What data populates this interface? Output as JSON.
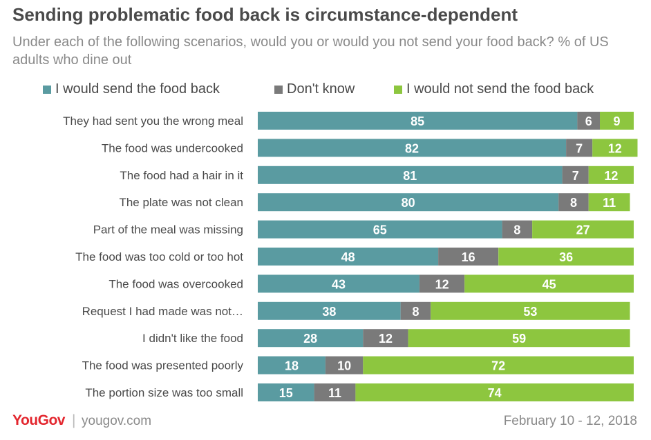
{
  "title": "Sending problematic food back is circumstance-dependent",
  "subtitle": "Under each of the following scenarios, would you or would you not send your food back?  % of US adults who dine out",
  "footer": {
    "logo": "YouGov",
    "separator": "|",
    "url": "yougov.com",
    "date": "February 10 - 12, 2018"
  },
  "colors": {
    "send": "#5a9ba1",
    "dont_know": "#7a7a7a",
    "not_send": "#8dc63f"
  },
  "chart_data": {
    "type": "bar",
    "orientation": "horizontal",
    "stacked": true,
    "categories": [
      "They had sent you the wrong meal",
      "The food was undercooked",
      "The food had a hair in it",
      "The plate was not clean",
      "Part of the meal was missing",
      "The food was too cold or too hot",
      "The food was overcooked",
      "Request I had made was not…",
      "I didn't like the food",
      "The food was presented poorly",
      "The portion size was too small"
    ],
    "series": [
      {
        "name": "I would send the food back",
        "color": "#5a9ba1",
        "values": [
          85,
          82,
          81,
          80,
          65,
          48,
          43,
          38,
          28,
          18,
          15
        ]
      },
      {
        "name": "Don't know",
        "color": "#7a7a7a",
        "values": [
          6,
          7,
          7,
          8,
          8,
          16,
          12,
          8,
          12,
          10,
          11
        ]
      },
      {
        "name": "I would not send the food back",
        "color": "#8dc63f",
        "values": [
          9,
          12,
          12,
          11,
          27,
          36,
          45,
          53,
          59,
          72,
          74
        ]
      }
    ],
    "xlim": [
      0,
      100
    ],
    "legend": "top",
    "grid": false
  }
}
